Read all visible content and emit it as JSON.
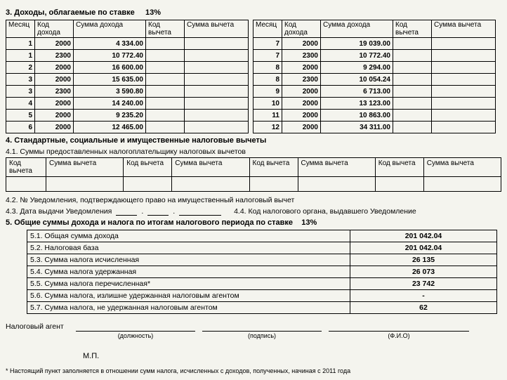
{
  "section3": {
    "title": "3. Доходы, облагаемые по ставке",
    "rate": "13%",
    "headers": {
      "month": "Месяц",
      "code": "Код дохода",
      "income": "Сумма дохода",
      "ded_code": "Код вычета",
      "ded_sum": "Сумма вычета"
    },
    "left": [
      {
        "m": "1",
        "c": "2000",
        "s": "4 334.00",
        "dc": "",
        "ds": ""
      },
      {
        "m": "1",
        "c": "2300",
        "s": "10 772.40",
        "dc": "",
        "ds": ""
      },
      {
        "m": "2",
        "c": "2000",
        "s": "16 600.00",
        "dc": "",
        "ds": ""
      },
      {
        "m": "3",
        "c": "2000",
        "s": "15 635.00",
        "dc": "",
        "ds": ""
      },
      {
        "m": "3",
        "c": "2300",
        "s": "3 590.80",
        "dc": "",
        "ds": ""
      },
      {
        "m": "4",
        "c": "2000",
        "s": "14 240.00",
        "dc": "",
        "ds": ""
      },
      {
        "m": "5",
        "c": "2000",
        "s": "9 235.20",
        "dc": "",
        "ds": ""
      },
      {
        "m": "6",
        "c": "2000",
        "s": "12 465.00",
        "dc": "",
        "ds": ""
      }
    ],
    "right": [
      {
        "m": "7",
        "c": "2000",
        "s": "19 039.00",
        "dc": "",
        "ds": ""
      },
      {
        "m": "7",
        "c": "2300",
        "s": "10 772.40",
        "dc": "",
        "ds": ""
      },
      {
        "m": "8",
        "c": "2000",
        "s": "9 294.00",
        "dc": "",
        "ds": ""
      },
      {
        "m": "8",
        "c": "2300",
        "s": "10 054.24",
        "dc": "",
        "ds": ""
      },
      {
        "m": "9",
        "c": "2000",
        "s": "6 713.00",
        "dc": "",
        "ds": ""
      },
      {
        "m": "10",
        "c": "2000",
        "s": "13 123.00",
        "dc": "",
        "ds": ""
      },
      {
        "m": "11",
        "c": "2000",
        "s": "10 863.00",
        "dc": "",
        "ds": ""
      },
      {
        "m": "12",
        "c": "2000",
        "s": "34 311.00",
        "dc": "",
        "ds": ""
      }
    ]
  },
  "section4": {
    "title": "4. Стандартные, социальные и имущественные налоговые вычеты",
    "sub41": "4.1. Суммы предоставленных налогоплательщику налоговых вычетов",
    "headers": {
      "code": "Код вычета",
      "sum": "Сумма вычета"
    },
    "sub42": "4.2. № Уведомления, подтверждающего право на имущественный налоговый вычет",
    "sub43": "4.3. Дата выдачи Уведомления",
    "sub44": "4.4. Код налогового органа, выдавшего Уведомление"
  },
  "section5": {
    "title": "5. Общие суммы дохода и налога по итогам налогового периода по ставке",
    "rate": "13%",
    "rows": [
      {
        "label": "5.1. Общая сумма дохода",
        "val": "201 042.04"
      },
      {
        "label": "5.2. Налоговая база",
        "val": "201 042.04"
      },
      {
        "label": "5.3. Сумма налога исчисленная",
        "val": "26 135"
      },
      {
        "label": "5.4. Сумма налога удержанная",
        "val": "26 073"
      },
      {
        "label": "5.5. Сумма налога перечисленная*",
        "val": "23 742"
      },
      {
        "label": "5.6. Сумма налога, излишне удержанная налоговым агентом",
        "val": "-"
      },
      {
        "label": "5.7. Сумма налога, не удержанная налоговым агентом",
        "val": "62"
      }
    ]
  },
  "signature": {
    "agent": "Налоговый агент",
    "position": "(должность)",
    "sign": "(подпись)",
    "fio": "(Ф.И.О)",
    "mp": "М.П."
  },
  "footnote": "* Настоящий пункт заполняется в отношении сумм налога, исчисленных с доходов, полученных, начиная с 2011 года"
}
